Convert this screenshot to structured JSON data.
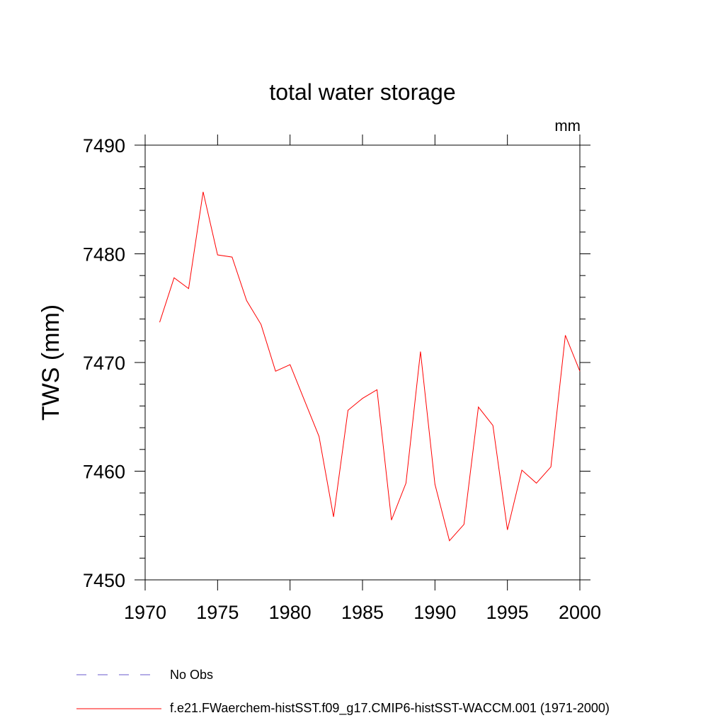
{
  "chart_data": {
    "type": "line",
    "title": "total water storage",
    "units": "mm",
    "ylabel": "TWS  (mm)",
    "xlabel": "",
    "xlim": [
      1970,
      2000
    ],
    "ylim": [
      7450,
      7490
    ],
    "x_ticks": [
      "1970",
      "1975",
      "1980",
      "1985",
      "1990",
      "1995",
      "2000"
    ],
    "y_ticks": [
      "7450",
      "7460",
      "7470",
      "7480",
      "7490"
    ],
    "grid": false,
    "legend_position": "bottom",
    "x": [
      1971,
      1972,
      1973,
      1974,
      1975,
      1976,
      1977,
      1978,
      1979,
      1980,
      1981,
      1982,
      1983,
      1984,
      1985,
      1986,
      1987,
      1988,
      1989,
      1990,
      1991,
      1992,
      1993,
      1994,
      1995,
      1996,
      1997,
      1998,
      1999,
      2000
    ],
    "series": [
      {
        "name": "f.e21.FWaerchem-histSST.f09_g17.CMIP6-histSST-WACCM.001 (1971-2000)",
        "color": "#ff0000",
        "style": "solid",
        "values": [
          7473.7,
          7477.8,
          7476.8,
          7485.7,
          7479.9,
          7479.7,
          7475.7,
          7473.5,
          7469.2,
          7469.8,
          7466.5,
          7463.2,
          7455.8,
          7465.6,
          7466.7,
          7467.5,
          7455.5,
          7458.9,
          7471.0,
          7458.8,
          7453.6,
          7455.1,
          7465.9,
          7464.2,
          7454.6,
          7460.1,
          7458.9,
          7460.4,
          7472.5,
          7469.2
        ]
      }
    ],
    "legend": [
      {
        "label": "No Obs",
        "color": "#6a5acd",
        "style": "dashed"
      },
      {
        "label": "f.e21.FWaerchem-histSST.f09_g17.CMIP6-histSST-WACCM.001 (1971-2000)",
        "color": "#ff0000",
        "style": "solid"
      }
    ]
  }
}
